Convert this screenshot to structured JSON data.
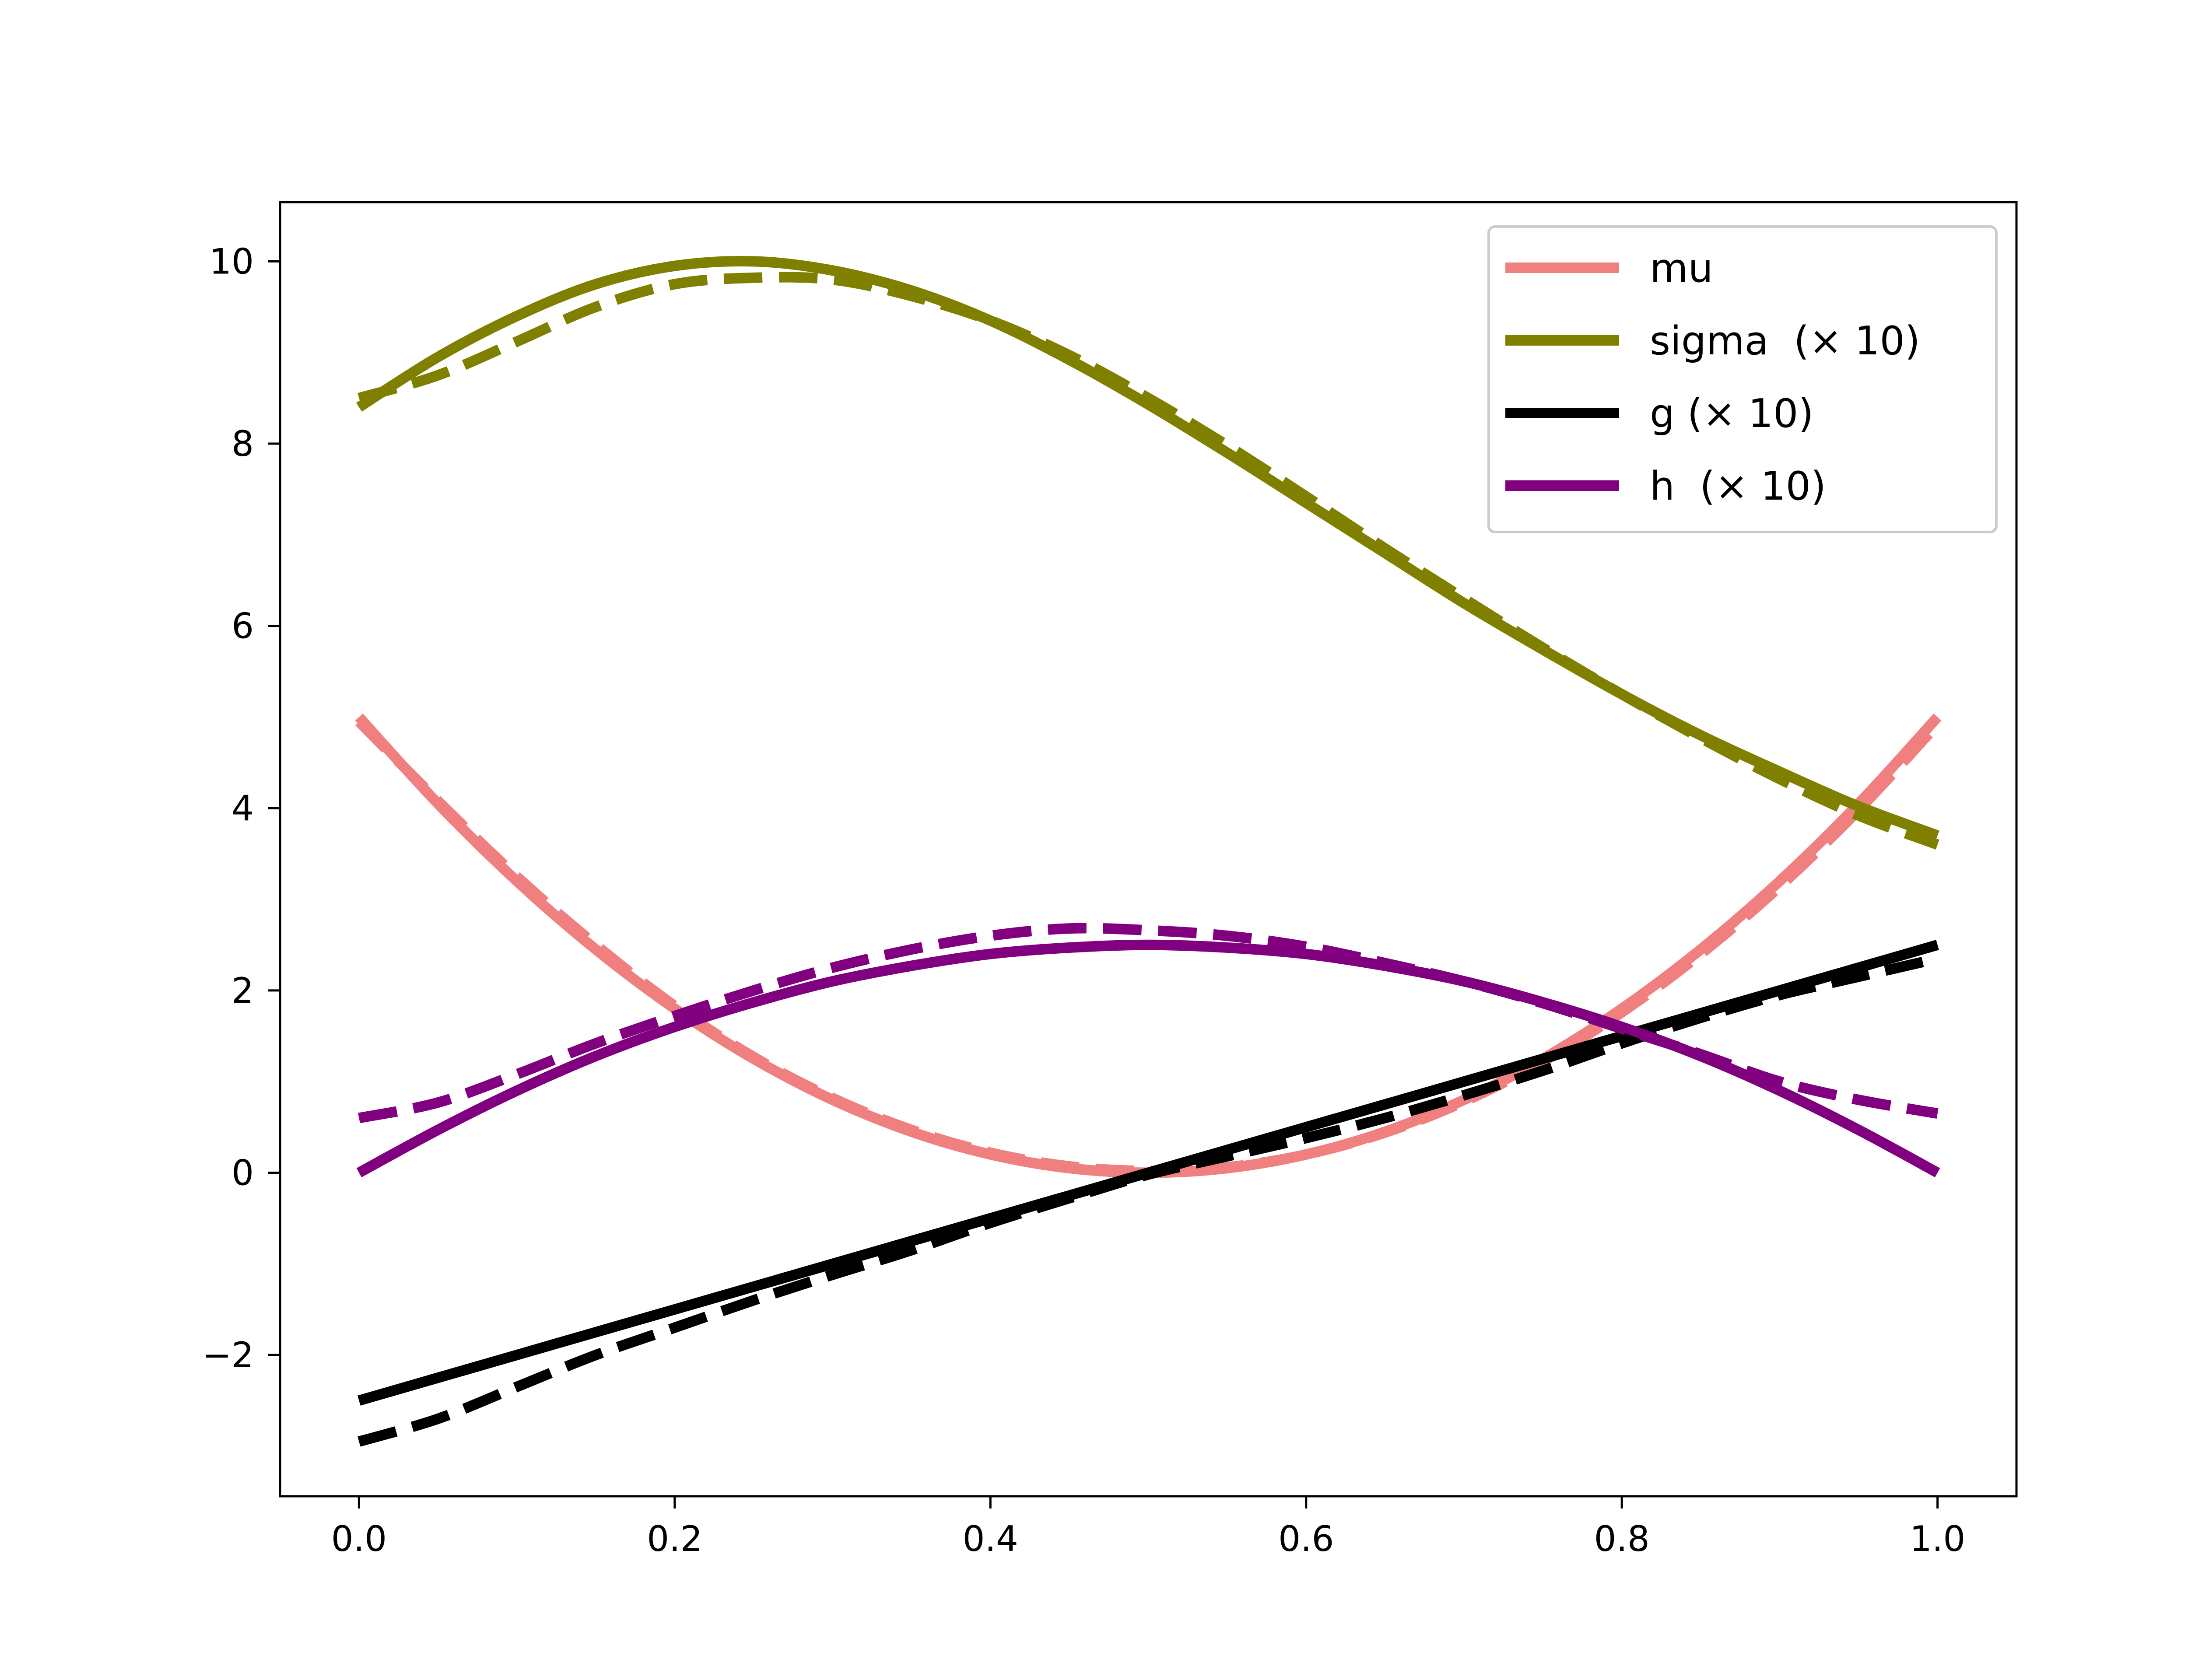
{
  "chart_data": {
    "type": "line",
    "title": "",
    "xlabel": "",
    "ylabel": "",
    "xlim": [
      -0.05,
      1.05
    ],
    "ylim": [
      -3.55,
      10.65
    ],
    "xticks": [
      0.0,
      0.2,
      0.4,
      0.6,
      0.8,
      1.0
    ],
    "xtick_labels": [
      "0.0",
      "0.2",
      "0.4",
      "0.6",
      "0.8",
      "1.0"
    ],
    "yticks": [
      -2,
      0,
      2,
      4,
      6,
      8,
      10
    ],
    "ytick_labels": [
      "−2",
      "0",
      "2",
      "4",
      "6",
      "8",
      "10"
    ],
    "grid": false,
    "legend_position": "top-right",
    "x": [
      0.0,
      0.05,
      0.1,
      0.15,
      0.2,
      0.25,
      0.3,
      0.35,
      0.4,
      0.45,
      0.5,
      0.55,
      0.6,
      0.65,
      0.7,
      0.75,
      0.8,
      0.85,
      0.9,
      0.95,
      1.0
    ],
    "series": [
      {
        "name": "mu",
        "color": "#f08080",
        "style": "solid",
        "values": [
          5.0,
          4.05,
          3.2,
          2.45,
          1.8,
          1.25,
          0.8,
          0.45,
          0.2,
          0.05,
          0.0,
          0.05,
          0.2,
          0.45,
          0.8,
          1.25,
          1.8,
          2.45,
          3.2,
          4.05,
          5.0
        ]
      },
      {
        "name": "",
        "color": "#f08080",
        "style": "dashed",
        "values": [
          4.95,
          4.08,
          3.25,
          2.5,
          1.83,
          1.27,
          0.82,
          0.47,
          0.22,
          0.07,
          0.02,
          0.06,
          0.2,
          0.44,
          0.78,
          1.22,
          1.76,
          2.4,
          3.14,
          3.98,
          4.92
        ]
      },
      {
        "name": "sigma  (× 10)",
        "color": "#808000",
        "style": "solid",
        "values": [
          8.4,
          8.95,
          9.4,
          9.75,
          9.95,
          10.0,
          9.9,
          9.68,
          9.35,
          8.92,
          8.43,
          7.9,
          7.35,
          6.8,
          6.25,
          5.74,
          5.25,
          4.8,
          4.4,
          4.02,
          3.7
        ]
      },
      {
        "name": "",
        "color": "#808000",
        "style": "dashed",
        "values": [
          8.5,
          8.75,
          9.12,
          9.5,
          9.75,
          9.82,
          9.8,
          9.62,
          9.35,
          8.97,
          8.5,
          7.98,
          7.42,
          6.85,
          6.3,
          5.76,
          5.25,
          4.77,
          4.32,
          3.92,
          3.6
        ]
      },
      {
        "name": "g (× 10)",
        "color": "#000000",
        "style": "solid",
        "values": [
          -2.5,
          -2.25,
          -2.0,
          -1.75,
          -1.5,
          -1.25,
          -1.0,
          -0.75,
          -0.5,
          -0.25,
          0.0,
          0.25,
          0.5,
          0.75,
          1.0,
          1.25,
          1.5,
          1.75,
          2.0,
          2.25,
          2.5
        ]
      },
      {
        "name": "",
        "color": "#000000",
        "style": "dashed",
        "values": [
          -2.95,
          -2.7,
          -2.35,
          -2.0,
          -1.7,
          -1.4,
          -1.12,
          -0.85,
          -0.55,
          -0.28,
          -0.02,
          0.18,
          0.38,
          0.6,
          0.85,
          1.12,
          1.42,
          1.7,
          1.95,
          2.15,
          2.35
        ]
      },
      {
        "name": "h  (× 10)",
        "color": "#800080",
        "style": "solid",
        "values": [
          0.0,
          0.47,
          0.9,
          1.28,
          1.6,
          1.87,
          2.1,
          2.27,
          2.4,
          2.47,
          2.5,
          2.47,
          2.4,
          2.27,
          2.1,
          1.87,
          1.6,
          1.28,
          0.9,
          0.47,
          0.0
        ]
      },
      {
        "name": "",
        "color": "#800080",
        "style": "dashed",
        "values": [
          0.6,
          0.77,
          1.08,
          1.42,
          1.72,
          2.0,
          2.25,
          2.45,
          2.6,
          2.68,
          2.66,
          2.6,
          2.48,
          2.3,
          2.1,
          1.86,
          1.58,
          1.3,
          1.0,
          0.8,
          0.65
        ]
      }
    ]
  }
}
